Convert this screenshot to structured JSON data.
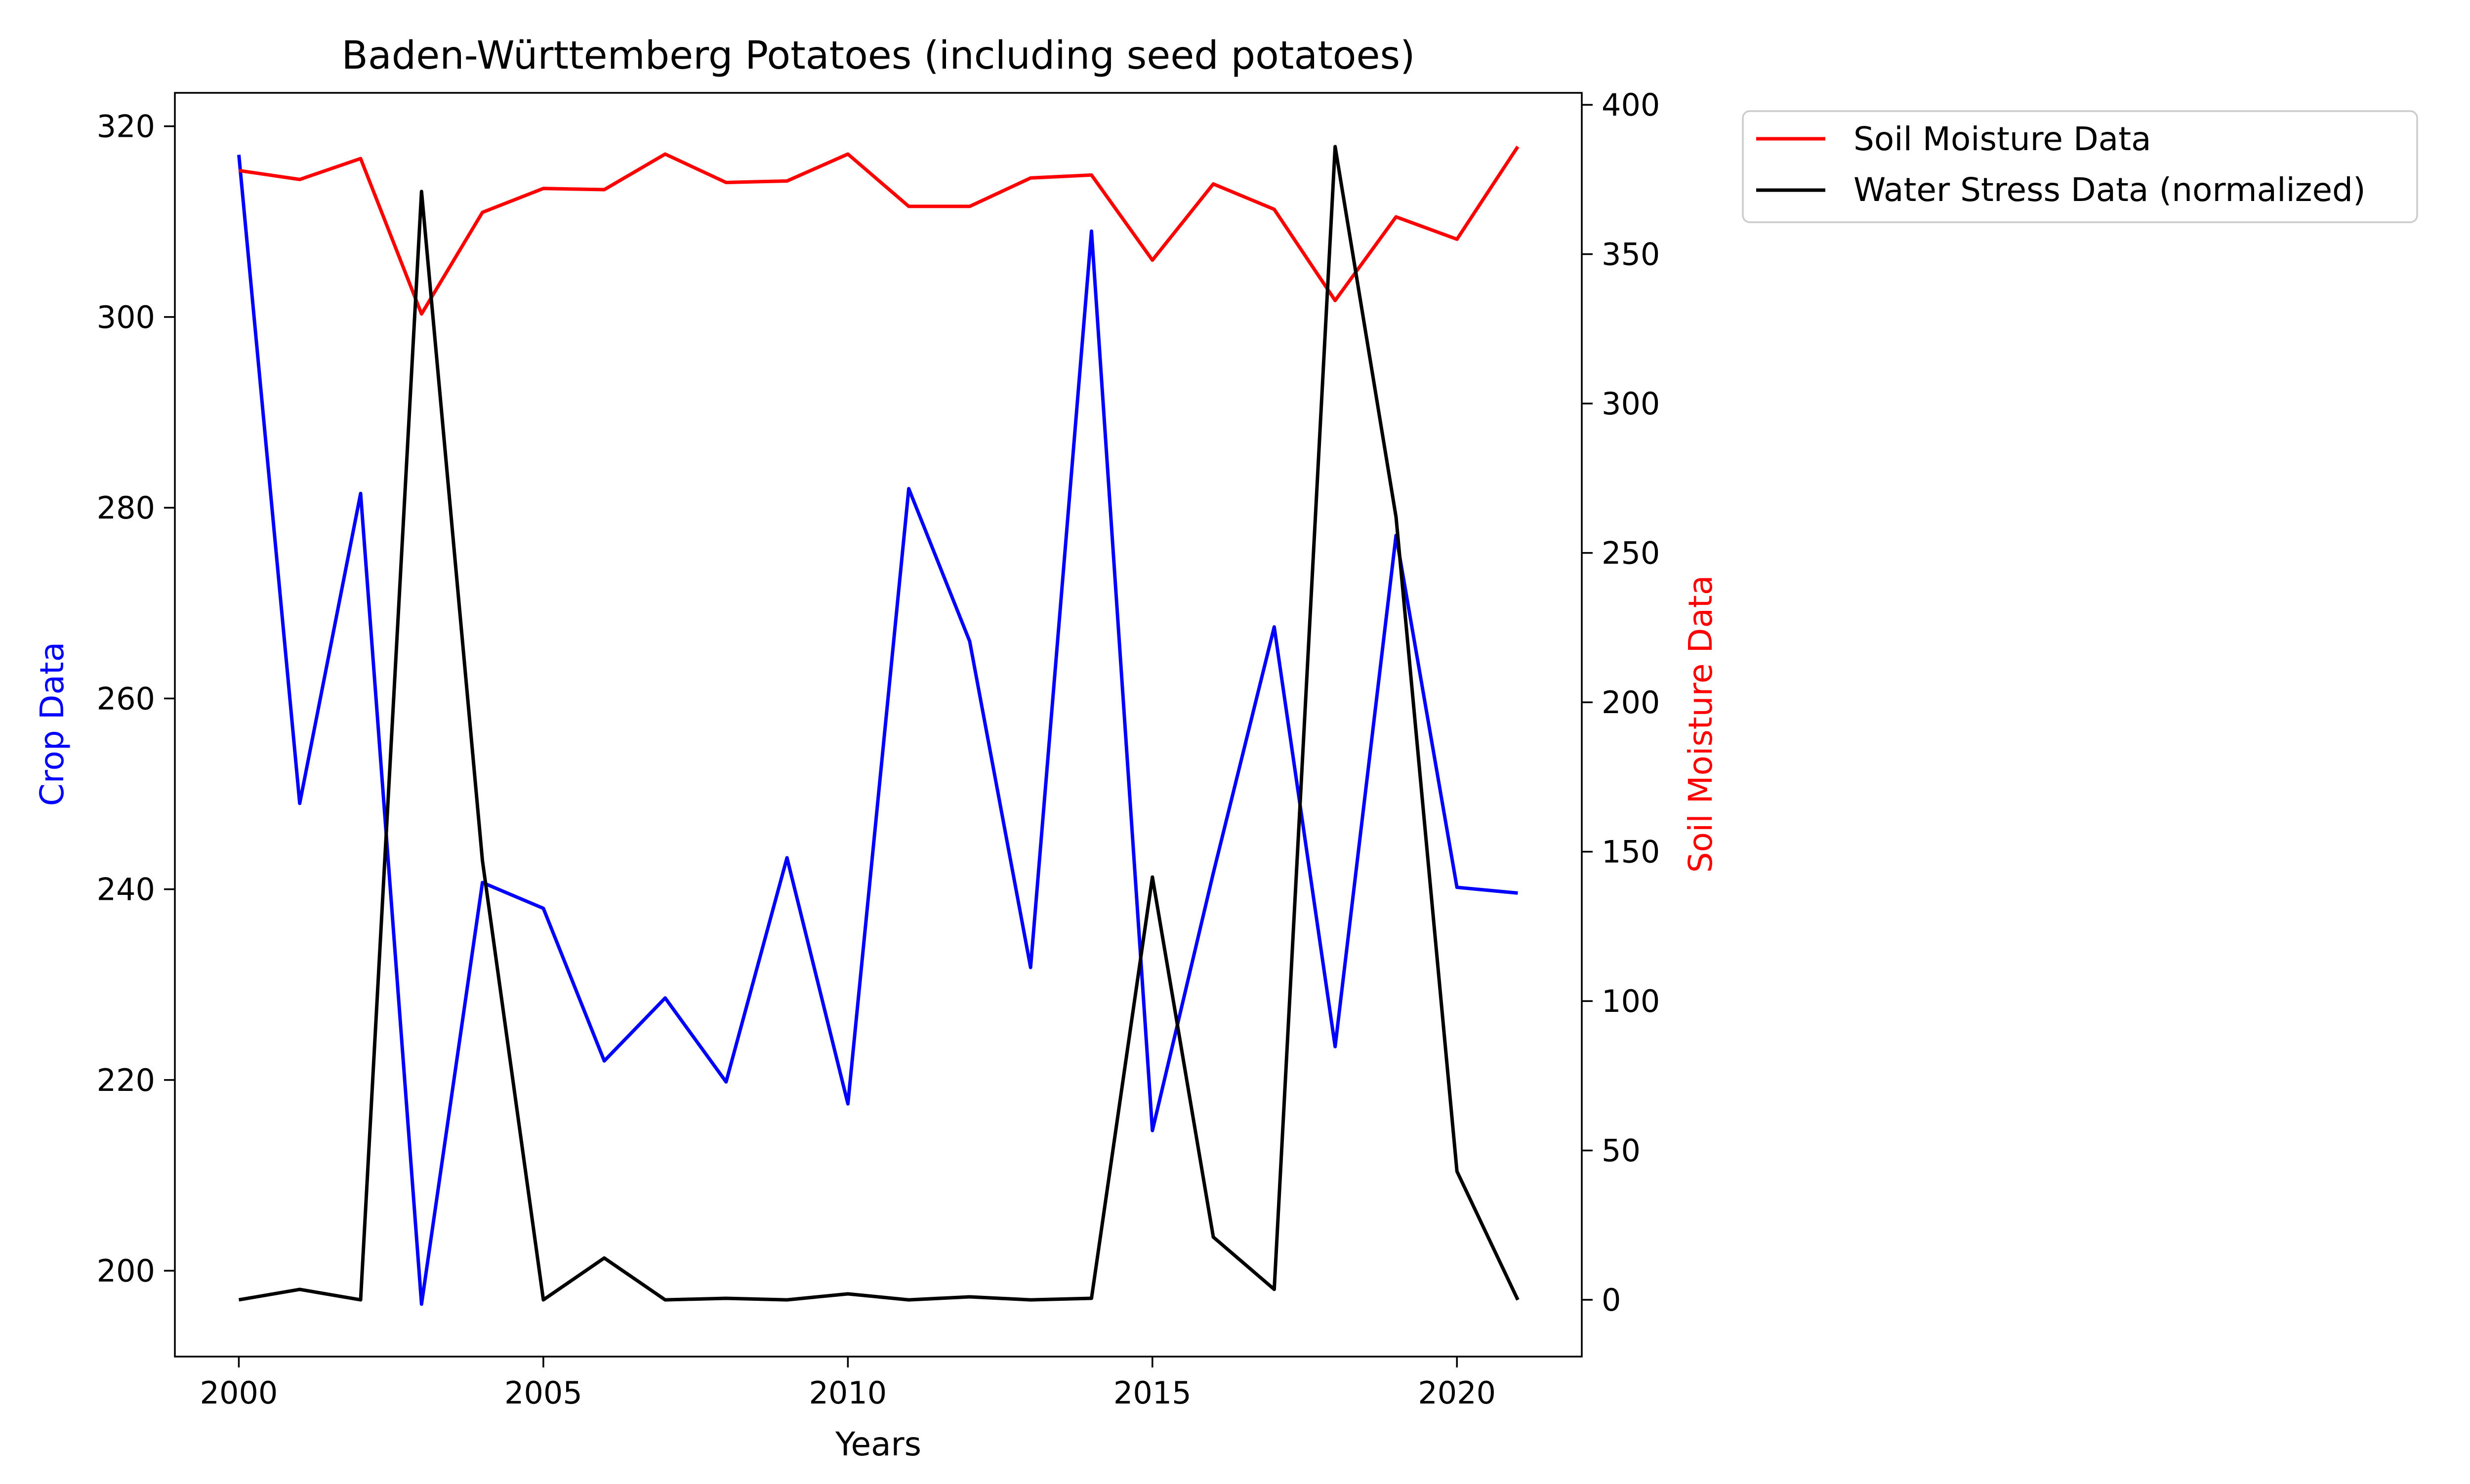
{
  "chart_data": {
    "type": "line",
    "title": "Baden-Württemberg Potatoes (including seed potatoes)",
    "xlabel": "Years",
    "ylabel_left": "Crop Data",
    "ylabel_right": "Soil Moisture Data",
    "colors": {
      "crop": "#0000ff",
      "soil": "#ff0000",
      "stress": "#000000"
    },
    "x": [
      2000,
      2001,
      2002,
      2003,
      2004,
      2005,
      2006,
      2007,
      2008,
      2009,
      2010,
      2011,
      2012,
      2013,
      2014,
      2015,
      2016,
      2017,
      2018,
      2019,
      2020,
      2021
    ],
    "x_ticks": [
      2000,
      2005,
      2010,
      2015,
      2020
    ],
    "xlim": [
      1998.95,
      2022.05
    ],
    "ylim_left": [
      191,
      323.5
    ],
    "yticks_left": [
      200,
      220,
      240,
      260,
      280,
      300,
      320
    ],
    "ylim_right": [
      -19,
      404
    ],
    "yticks_right": [
      0,
      50,
      100,
      150,
      200,
      250,
      300,
      350,
      400
    ],
    "grid": false,
    "legend_position": "outside-right-top",
    "series": [
      {
        "key": "crop",
        "axis": "left",
        "values": [
          317,
          249,
          281.5,
          196.5,
          240.7,
          238,
          222,
          228.6,
          219.8,
          243.3,
          217.5,
          282,
          266,
          231.8,
          309,
          214.7,
          241.7,
          267.5,
          223.5,
          277.1,
          240.2,
          239.6
        ]
      },
      {
        "key": "soil",
        "name": "Soil Moisture Data",
        "axis": "right",
        "values": [
          378,
          375,
          382,
          330,
          364,
          372,
          371.6,
          383.5,
          374,
          374.5,
          383.5,
          366,
          366,
          375.5,
          376.5,
          348,
          373.5,
          365,
          334.5,
          362.5,
          355,
          386
        ]
      },
      {
        "key": "stress",
        "name": "Water Stress Data (normalized)",
        "axis": "right",
        "values": [
          0,
          3.5,
          0,
          371,
          147,
          0,
          14,
          0,
          0.5,
          0,
          2,
          0,
          1,
          0,
          0.5,
          141.5,
          21,
          3.5,
          386,
          262,
          43,
          0
        ]
      }
    ]
  }
}
